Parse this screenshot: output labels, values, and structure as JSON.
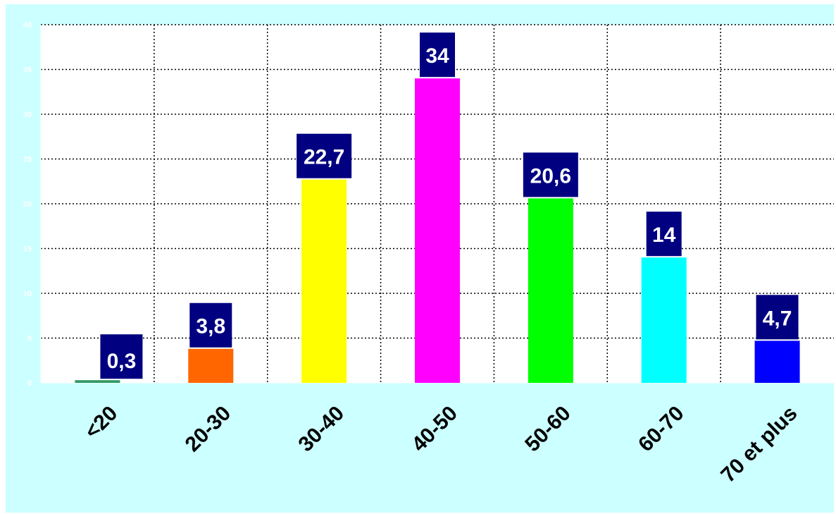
{
  "chart_data": {
    "type": "bar",
    "title": "",
    "xlabel": "",
    "ylabel": "",
    "categories": [
      "<20",
      "20-30",
      "30-40",
      "40-50",
      "50-60",
      "60-70",
      "70 et plus"
    ],
    "values": [
      0.3,
      3.8,
      22.7,
      34,
      20.6,
      14,
      4.7
    ],
    "value_labels": [
      "0,3",
      "3,8",
      "22,7",
      "34",
      "20,6",
      "14",
      "4,7"
    ],
    "colors": [
      "#339966",
      "#ff6600",
      "#ffff00",
      "#ff00ff",
      "#00ff00",
      "#00ffff",
      "#0000ff"
    ],
    "ylim": [
      0,
      40
    ],
    "yticks": [
      0,
      5,
      10,
      15,
      20,
      25,
      30,
      35,
      40
    ],
    "grid": true,
    "legend": "none",
    "background_color": "#ccffff",
    "plot_background_color": "#ffffff",
    "label_box_color": "#000080"
  }
}
